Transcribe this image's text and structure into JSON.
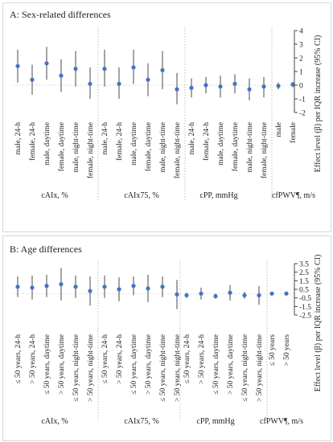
{
  "figure": {
    "panels": [
      {
        "title": "A: Sex-related differences",
        "ylabel": "Effect level (β) per IQR increase (95% CI)"
      },
      {
        "title": "B: Age differences",
        "ylabel": "Effect level (β) per IQR increase (95% CI)"
      }
    ]
  },
  "chart_data": [
    {
      "type": "scatter",
      "title": "A: Sex-related differences",
      "ylabel": "Effect level (β) per IQR increase (95% CI)",
      "ylim": [
        -2,
        4
      ],
      "yticks": [
        -2,
        -1,
        0,
        1,
        2,
        3,
        4
      ],
      "categories": [
        "male, 24-h",
        "female, 24-h",
        "male, daytime",
        "female, daytime",
        "male, night-time",
        "female, night-time",
        "male, 24-h",
        "female, 24-h",
        "male, daytime",
        "female, daytime",
        "male, night-time",
        "female, night-time",
        "male, 24-h",
        "female, 24-h",
        "male, daytime",
        "female, daytime",
        "male, night-time",
        "female, night-time",
        "male",
        "female"
      ],
      "groups": [
        {
          "label": "cAIx, %",
          "start": 0,
          "count": 6
        },
        {
          "label": "cAIx75, %",
          "start": 6,
          "count": 6
        },
        {
          "label": "cPP, mmHg",
          "start": 12,
          "count": 6
        },
        {
          "label": "cfPWV¶, m/s",
          "start": 18,
          "count": 2
        }
      ],
      "estimates": [
        1.4,
        0.4,
        1.6,
        0.7,
        1.2,
        0.1,
        1.2,
        0.1,
        1.3,
        0.4,
        1.1,
        -0.3,
        -0.2,
        0.0,
        -0.1,
        0.1,
        -0.3,
        -0.1,
        -0.05,
        0.05
      ],
      "ci_lower": [
        0.2,
        -0.7,
        0.4,
        -0.5,
        -0.1,
        -1.0,
        -0.1,
        -1.0,
        0.1,
        -0.8,
        -0.3,
        -1.4,
        -0.9,
        -0.6,
        -0.9,
        -0.6,
        -1.1,
        -0.9,
        -0.3,
        -0.15
      ],
      "ci_upper": [
        2.6,
        1.5,
        2.8,
        1.9,
        2.5,
        1.3,
        2.6,
        1.3,
        2.6,
        1.6,
        2.5,
        0.9,
        0.5,
        0.6,
        0.7,
        0.8,
        0.5,
        0.6,
        0.2,
        0.25
      ]
    },
    {
      "type": "scatter",
      "title": "B: Age differences",
      "ylabel": "Effect level (β) per IQR increase (95% CI)",
      "ylim": [
        -2.5,
        3.5
      ],
      "yticks": [
        -2.5,
        -1.5,
        -0.5,
        0.5,
        1.5,
        2.5,
        3.5
      ],
      "categories": [
        "≤ 50 years, 24-h",
        "> 50 years, 24-h",
        "≤ 50 years, daytime",
        "> 50 years, daytime",
        "≤ 50 years, night-time",
        "> 50 years, night-time",
        "≤ 50 years, 24-h",
        "> 50 years, 24-h",
        "≤ 50 years, daytime",
        "> 50 years, daytime",
        "≤ 50 years, night-time",
        "> 50 years, night-time",
        "≤ 50 years, 24-h",
        "> 50 years, 24-h",
        "≤ 50 years, daytime",
        "> 50 years, daytime",
        "≤ 50 years, night-time",
        "> 50 years, night-time",
        "≤ 50 years",
        "> 50 years"
      ],
      "groups": [
        {
          "label": "cAIx, %",
          "start": 0,
          "count": 6
        },
        {
          "label": "cAIx75, %",
          "start": 6,
          "count": 6
        },
        {
          "label": "cPP, mmHg",
          "start": 12,
          "count": 6
        },
        {
          "label": "cfPWV¶, m/s",
          "start": 18,
          "count": 2
        }
      ],
      "estimates": [
        0.8,
        0.7,
        0.9,
        1.1,
        0.8,
        0.3,
        0.8,
        0.5,
        0.9,
        0.6,
        0.8,
        -0.1,
        -0.2,
        0.0,
        -0.3,
        0.1,
        -0.2,
        -0.2,
        0.0,
        0.0
      ],
      "ci_lower": [
        -0.4,
        -0.7,
        -0.4,
        -0.8,
        -0.5,
        -1.4,
        -0.5,
        -0.9,
        -0.2,
        -1.0,
        -0.4,
        -1.8,
        -0.5,
        -0.7,
        -0.6,
        -0.8,
        -0.6,
        -1.3,
        -0.1,
        -0.15
      ],
      "ci_upper": [
        2.0,
        2.1,
        2.2,
        3.0,
        2.1,
        2.0,
        2.1,
        1.9,
        2.0,
        2.2,
        2.0,
        1.6,
        0.1,
        0.7,
        0.0,
        1.0,
        0.2,
        0.9,
        0.1,
        0.15
      ]
    }
  ]
}
